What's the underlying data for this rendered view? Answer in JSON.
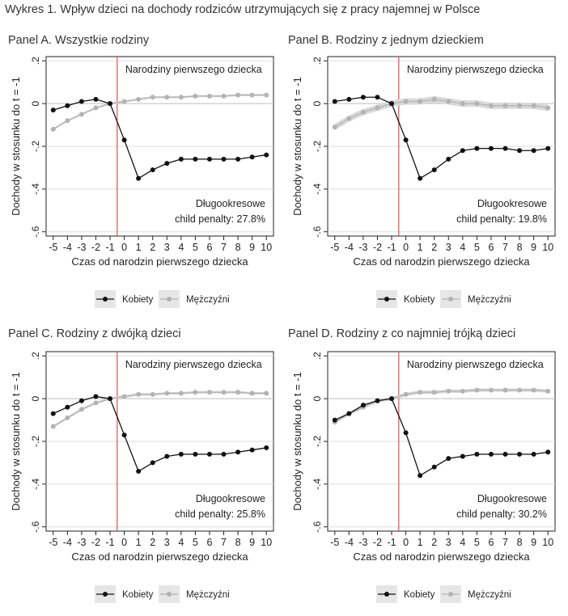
{
  "figure": {
    "title": "Wykres 1. Wpływ dzieci na dochody rodziców utrzymujących się z pracy najemnej w Polsce"
  },
  "colors": {
    "women": "#111111",
    "men": "#b3b3b3",
    "band": "#d9d9d9",
    "event_line": "#d9534f",
    "grid": "#dddddd",
    "zero_line": "#bdbdbd"
  },
  "chart_data": [
    {
      "type": "line",
      "panel_id": "a",
      "title": "Panel A. Wszystkie rodziny",
      "xlabel": "Czas od narodzin pierwszego dziecka",
      "ylabel": "Dochody w stosunku do t = -1",
      "x": [
        -5,
        -4,
        -3,
        -2,
        -1,
        0,
        1,
        2,
        3,
        4,
        5,
        6,
        7,
        8,
        9,
        10
      ],
      "xlim": [
        -5.5,
        10.5
      ],
      "ylim": [
        -0.62,
        0.22
      ],
      "yticks": [
        0.2,
        0,
        -0.2,
        -0.4,
        -0.6
      ],
      "ytick_labels": [
        ".2",
        "0",
        "-.2",
        "-.4",
        "-.6"
      ],
      "xtick_labels": [
        "-5",
        "-4",
        "-3",
        "-2",
        "-1",
        "0",
        "1",
        "2",
        "3",
        "4",
        "5",
        "6",
        "7",
        "8",
        "9",
        "10"
      ],
      "event_x": -0.5,
      "event_label": "Narodziny pierwszego dziecka",
      "annotation": [
        "Długookresowe",
        "child penalty: 27.8%"
      ],
      "series": [
        {
          "name": "Kobiety",
          "values": [
            -0.03,
            -0.01,
            0.01,
            0.02,
            0.0,
            -0.17,
            -0.35,
            -0.31,
            -0.28,
            -0.26,
            -0.26,
            -0.26,
            -0.26,
            -0.26,
            -0.25,
            -0.24
          ]
        },
        {
          "name": "Mężczyźni",
          "values": [
            -0.12,
            -0.08,
            -0.05,
            -0.02,
            0.0,
            0.01,
            0.02,
            0.03,
            0.03,
            0.03,
            0.035,
            0.035,
            0.035,
            0.04,
            0.04,
            0.04
          ],
          "band": 0.005
        }
      ],
      "legend": [
        "Kobiety",
        "Mężczyźni"
      ]
    },
    {
      "type": "line",
      "panel_id": "b",
      "title": "Panel B. Rodziny z jednym dzieckiem",
      "xlabel": "Czas od narodzin pierwszego dziecka",
      "ylabel": "Dochody w stosunku do t = -1",
      "x": [
        -5,
        -4,
        -3,
        -2,
        -1,
        0,
        1,
        2,
        3,
        4,
        5,
        6,
        7,
        8,
        9,
        10
      ],
      "xlim": [
        -5.5,
        10.5
      ],
      "ylim": [
        -0.62,
        0.22
      ],
      "yticks": [
        0.2,
        0,
        -0.2,
        -0.4,
        -0.6
      ],
      "ytick_labels": [
        ".2",
        "0",
        "-.2",
        "-.4",
        "-.6"
      ],
      "xtick_labels": [
        "-5",
        "-4",
        "-3",
        "-2",
        "-1",
        "0",
        "1",
        "2",
        "3",
        "4",
        "5",
        "6",
        "7",
        "8",
        "9",
        "10"
      ],
      "event_x": -0.5,
      "event_label": "Narodziny pierwszego dziecka",
      "annotation": [
        "Długookresowe",
        "child penalty: 19.8%"
      ],
      "series": [
        {
          "name": "Kobiety",
          "values": [
            0.01,
            0.02,
            0.03,
            0.03,
            0.0,
            -0.17,
            -0.35,
            -0.31,
            -0.26,
            -0.22,
            -0.21,
            -0.21,
            -0.21,
            -0.22,
            -0.22,
            -0.21
          ]
        },
        {
          "name": "Mężczyźni",
          "values": [
            -0.11,
            -0.07,
            -0.04,
            -0.02,
            0.0,
            0.01,
            0.01,
            0.02,
            0.01,
            0.0,
            0.0,
            -0.01,
            -0.01,
            -0.01,
            -0.01,
            -0.02
          ],
          "band": 0.015
        }
      ],
      "legend": [
        "Kobiety",
        "Mężczyźni"
      ]
    },
    {
      "type": "line",
      "panel_id": "c",
      "title": "Panel C. Rodziny z dwójką dzieci",
      "xlabel": "Czas od narodzin pierwszego dziecka",
      "ylabel": "Dochody w stosunku do t = -1",
      "x": [
        -5,
        -4,
        -3,
        -2,
        -1,
        0,
        1,
        2,
        3,
        4,
        5,
        6,
        7,
        8,
        9,
        10
      ],
      "xlim": [
        -5.5,
        10.5
      ],
      "ylim": [
        -0.62,
        0.22
      ],
      "yticks": [
        0.2,
        0,
        -0.2,
        -0.4,
        -0.6
      ],
      "ytick_labels": [
        ".2",
        "0",
        "-.2",
        "-.4",
        "-.6"
      ],
      "xtick_labels": [
        "-5",
        "-4",
        "-3",
        "-2",
        "-1",
        "0",
        "1",
        "2",
        "3",
        "4",
        "5",
        "6",
        "7",
        "8",
        "9",
        "10"
      ],
      "event_x": -0.5,
      "event_label": "Narodziny pierwszego dziecka",
      "annotation": [
        "Długookresowe",
        "child penalty: 25.8%"
      ],
      "series": [
        {
          "name": "Kobiety",
          "values": [
            -0.07,
            -0.04,
            -0.01,
            0.01,
            0.0,
            -0.17,
            -0.34,
            -0.3,
            -0.27,
            -0.26,
            -0.26,
            -0.26,
            -0.26,
            -0.25,
            -0.24,
            -0.23
          ]
        },
        {
          "name": "Mężczyźni",
          "values": [
            -0.13,
            -0.09,
            -0.05,
            -0.02,
            0.0,
            0.01,
            0.02,
            0.02,
            0.025,
            0.025,
            0.03,
            0.03,
            0.03,
            0.03,
            0.025,
            0.025
          ],
          "band": 0.006
        }
      ],
      "legend": [
        "Kobiety",
        "Mężczyźni"
      ]
    },
    {
      "type": "line",
      "panel_id": "d",
      "title": "Panel D. Rodziny z co najmniej trójką dzieci",
      "xlabel": "Czas od narodzin pierwszego dziecka",
      "ylabel": "Dochody w stosunku do t = -1",
      "x": [
        -5,
        -4,
        -3,
        -2,
        -1,
        0,
        1,
        2,
        3,
        4,
        5,
        6,
        7,
        8,
        9,
        10
      ],
      "xlim": [
        -5.5,
        10.5
      ],
      "ylim": [
        -0.62,
        0.22
      ],
      "yticks": [
        0.2,
        0,
        -0.2,
        -0.4,
        -0.6
      ],
      "ytick_labels": [
        ".2",
        "0",
        "-.2",
        "-.4",
        "-.6"
      ],
      "xtick_labels": [
        "-5",
        "-4",
        "-3",
        "-2",
        "-1",
        "0",
        "1",
        "2",
        "3",
        "4",
        "5",
        "6",
        "7",
        "8",
        "9",
        "10"
      ],
      "event_x": -0.5,
      "event_label": "Narodziny pierwszego dziecka",
      "annotation": [
        "Długookresowe",
        "child penalty: 30.2%"
      ],
      "series": [
        {
          "name": "Kobiety",
          "values": [
            -0.1,
            -0.07,
            -0.03,
            -0.01,
            0.0,
            -0.16,
            -0.36,
            -0.32,
            -0.28,
            -0.27,
            -0.26,
            -0.26,
            -0.26,
            -0.26,
            -0.26,
            -0.25
          ]
        },
        {
          "name": "Mężczyźni",
          "values": [
            -0.11,
            -0.07,
            -0.04,
            -0.01,
            0.0,
            0.02,
            0.03,
            0.03,
            0.035,
            0.035,
            0.04,
            0.04,
            0.04,
            0.04,
            0.04,
            0.035
          ],
          "band": 0.008
        }
      ],
      "legend": [
        "Kobiety",
        "Mężczyźni"
      ]
    }
  ]
}
